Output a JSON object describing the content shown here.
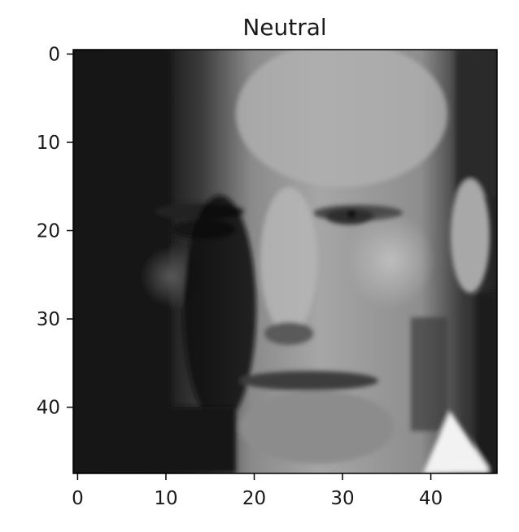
{
  "figure": {
    "title": "Neutral",
    "image_grid": {
      "width": 48,
      "height": 48,
      "colormap": "gray"
    },
    "x_ticks": [
      0,
      10,
      20,
      30,
      40
    ],
    "y_ticks": [
      0,
      10,
      20,
      30,
      40
    ],
    "xlim": [
      -0.5,
      47.5
    ],
    "ylim": [
      47.5,
      -0.5
    ],
    "grid": false
  }
}
